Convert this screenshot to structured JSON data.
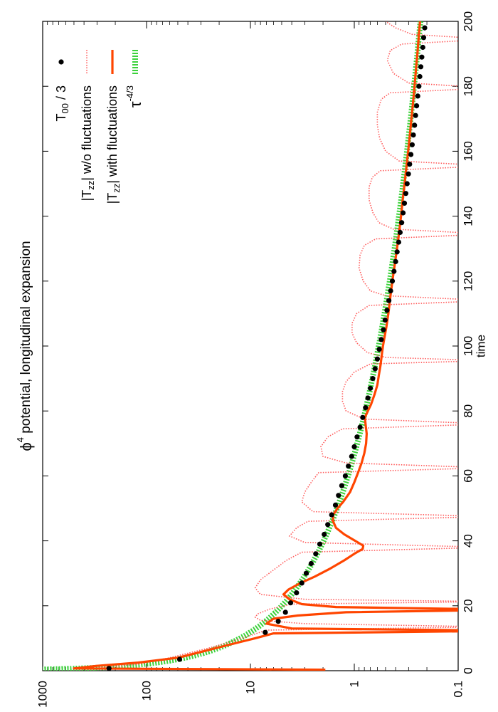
{
  "chart_data": {
    "type": "line",
    "title_symbol": "ϕ",
    "title_exponent": "4",
    "title_text": " potential, longitudinal expansion",
    "xlabel": "time",
    "ylabel": "",
    "xlim": [
      0,
      200
    ],
    "ylim": [
      0.1,
      1000
    ],
    "yscale": "log",
    "orientation": "rotated-90-ccw",
    "x_ticks": [
      "0",
      "20",
      "40",
      "60",
      "80",
      "100",
      "120",
      "140",
      "160",
      "180",
      "200"
    ],
    "y_ticks": [
      "0.1",
      "1",
      "10",
      "100",
      "1000"
    ],
    "grid": false,
    "legend_position": "top-right",
    "series": [
      {
        "name": "T00 / 3",
        "legend_main": "T",
        "legend_sub": "00",
        "legend_tail": " / 3",
        "style": "points",
        "color": "#000000",
        "points": [
          [
            0.7,
            230
          ],
          [
            3.5,
            48
          ],
          [
            11.8,
            7.2
          ],
          [
            15.2,
            5.4
          ],
          [
            18,
            4.6
          ],
          [
            20.9,
            4.1
          ],
          [
            24,
            3.6
          ],
          [
            27,
            3.2
          ],
          [
            30,
            2.9
          ],
          [
            33,
            2.6
          ],
          [
            36,
            2.35
          ],
          [
            39,
            2.15
          ],
          [
            42,
            1.95
          ],
          [
            45,
            1.8
          ],
          [
            48,
            1.65
          ],
          [
            51,
            1.52
          ],
          [
            54,
            1.42
          ],
          [
            57,
            1.32
          ],
          [
            60,
            1.22
          ],
          [
            63,
            1.14
          ],
          [
            66,
            1.06
          ],
          [
            69,
            1.0
          ],
          [
            72,
            0.94
          ],
          [
            75,
            0.88
          ],
          [
            78,
            0.83
          ],
          [
            81,
            0.78
          ],
          [
            84,
            0.74
          ],
          [
            87,
            0.7
          ],
          [
            90,
            0.665
          ],
          [
            93,
            0.63
          ],
          [
            96,
            0.6
          ],
          [
            99,
            0.575
          ],
          [
            102,
            0.55
          ],
          [
            105,
            0.525
          ],
          [
            108,
            0.505
          ],
          [
            111,
            0.485
          ],
          [
            114,
            0.465
          ],
          [
            117,
            0.447
          ],
          [
            120,
            0.43
          ],
          [
            123,
            0.415
          ],
          [
            126,
            0.4
          ],
          [
            129,
            0.387
          ],
          [
            132,
            0.374
          ],
          [
            135,
            0.362
          ],
          [
            138,
            0.35
          ],
          [
            141,
            0.339
          ],
          [
            144,
            0.329
          ],
          [
            147,
            0.319
          ],
          [
            150,
            0.31
          ],
          [
            153,
            0.301
          ],
          [
            156,
            0.293
          ],
          [
            159,
            0.285
          ],
          [
            162,
            0.277
          ],
          [
            165,
            0.27
          ],
          [
            168,
            0.263
          ],
          [
            171,
            0.257
          ],
          [
            174,
            0.251
          ],
          [
            177,
            0.245
          ],
          [
            180,
            0.239
          ],
          [
            183,
            0.234
          ],
          [
            186,
            0.229
          ],
          [
            189,
            0.224
          ],
          [
            192,
            0.219
          ],
          [
            195,
            0.215
          ],
          [
            198,
            0.21
          ]
        ]
      },
      {
        "name": "|Tzz| w/o fluctuations",
        "legend_main": "|T",
        "legend_sub": "zz",
        "legend_tail": "| w/o fluctuations",
        "style": "dotted",
        "color": "#ff5a5a",
        "points": [
          [
            0.5,
            380
          ],
          [
            2,
            120
          ],
          [
            4,
            60
          ],
          [
            7,
            25
          ],
          [
            10,
            12
          ],
          [
            12.5,
            7
          ],
          [
            13.5,
            0.05
          ],
          [
            14.5,
            3
          ],
          [
            15.5,
            8
          ],
          [
            16.5,
            9
          ],
          [
            17.5,
            8.5
          ],
          [
            19,
            6.5
          ],
          [
            20.5,
            4
          ],
          [
            21.3,
            0.05
          ],
          [
            22,
            3
          ],
          [
            23.5,
            8
          ],
          [
            25.5,
            9
          ],
          [
            28,
            8
          ],
          [
            31,
            6
          ],
          [
            34,
            4.5
          ],
          [
            36.5,
            3.2
          ],
          [
            38,
            0.05
          ],
          [
            39.5,
            3
          ],
          [
            41.5,
            4.2
          ],
          [
            44,
            3.6
          ],
          [
            46,
            2.8
          ],
          [
            47.5,
            0.05
          ],
          [
            49,
            2.5
          ],
          [
            52,
            3.2
          ],
          [
            55,
            3.0
          ],
          [
            58,
            2.6
          ],
          [
            61,
            2.2
          ],
          [
            62.5,
            0.05
          ],
          [
            64,
            1.2
          ],
          [
            66,
            2.0
          ],
          [
            69,
            2.1
          ],
          [
            72,
            1.8
          ],
          [
            74.5,
            1.3
          ],
          [
            76,
            0.05
          ],
          [
            77.5,
            0.8
          ],
          [
            80,
            1.2
          ],
          [
            83,
            1.3
          ],
          [
            86,
            1.3
          ],
          [
            89,
            1.2
          ],
          [
            92,
            1.0
          ],
          [
            94.5,
            0.7
          ],
          [
            95.5,
            0.05
          ],
          [
            96.5,
            0.5
          ],
          [
            98,
            0.75
          ],
          [
            101,
            0.95
          ],
          [
            104,
            1.05
          ],
          [
            107,
            1.05
          ],
          [
            110,
            0.95
          ],
          [
            112.5,
            0.72
          ],
          [
            114,
            0.05
          ],
          [
            115.5,
            0.5
          ],
          [
            117,
            0.7
          ],
          [
            120,
            0.82
          ],
          [
            124,
            0.9
          ],
          [
            128,
            0.88
          ],
          [
            131,
            0.8
          ],
          [
            133,
            0.62
          ],
          [
            134.5,
            0.05
          ],
          [
            136,
            0.42
          ],
          [
            138,
            0.58
          ],
          [
            141,
            0.66
          ],
          [
            145,
            0.72
          ],
          [
            149,
            0.72
          ],
          [
            152,
            0.67
          ],
          [
            154,
            0.56
          ],
          [
            155.5,
            0.05
          ],
          [
            157,
            0.37
          ],
          [
            160,
            0.5
          ],
          [
            164,
            0.57
          ],
          [
            168,
            0.6
          ],
          [
            172,
            0.6
          ],
          [
            176,
            0.55
          ],
          [
            178,
            0.45
          ],
          [
            179.5,
            0.05
          ],
          [
            181,
            0.3
          ],
          [
            184,
            0.42
          ],
          [
            188,
            0.48
          ],
          [
            191,
            0.45
          ],
          [
            193,
            0.35
          ],
          [
            194.5,
            0.05
          ],
          [
            196,
            0.28
          ],
          [
            198,
            0.4
          ],
          [
            200,
            0.5
          ]
        ]
      },
      {
        "name": "|Tzz| with fluctuations",
        "legend_main": "|T",
        "legend_sub": "zz",
        "legend_tail": "| with fluctuations",
        "style": "solid",
        "color": "#ff4500",
        "points": [
          [
            0.3,
            1.9
          ],
          [
            0.7,
            500
          ],
          [
            1.5,
            300
          ],
          [
            2.5,
            120
          ],
          [
            4,
            50
          ],
          [
            6,
            28
          ],
          [
            8,
            16
          ],
          [
            10,
            9
          ],
          [
            11.5,
            6
          ],
          [
            12.3,
            0.03
          ],
          [
            13,
            4
          ],
          [
            14.5,
            7
          ],
          [
            16,
            6
          ],
          [
            17,
            3.5
          ],
          [
            18,
            1.2
          ],
          [
            18.8,
            0.03
          ],
          [
            19.6,
            1.5
          ],
          [
            20.5,
            3.2
          ],
          [
            22,
            4.2
          ],
          [
            23.5,
            4.8
          ],
          [
            25,
            4.3
          ],
          [
            27,
            3.3
          ],
          [
            29,
            2.4
          ],
          [
            31.5,
            1.7
          ],
          [
            34,
            1.25
          ],
          [
            36,
            1.0
          ],
          [
            37.5,
            0.83
          ],
          [
            38.5,
            0.82
          ],
          [
            40,
            0.98
          ],
          [
            42,
            1.25
          ],
          [
            44,
            1.5
          ],
          [
            46,
            1.6
          ],
          [
            48,
            1.6
          ],
          [
            50,
            1.45
          ],
          [
            52,
            1.28
          ],
          [
            55,
            1.1
          ],
          [
            58,
            1.0
          ],
          [
            61,
            0.92
          ],
          [
            64,
            0.85
          ],
          [
            67,
            0.8
          ],
          [
            70,
            0.77
          ],
          [
            73,
            0.76
          ],
          [
            76,
            0.78
          ],
          [
            78,
            0.79
          ],
          [
            80,
            0.74
          ],
          [
            82,
            0.69
          ],
          [
            85,
            0.64
          ],
          [
            88,
            0.6
          ],
          [
            91,
            0.58
          ],
          [
            94,
            0.56
          ],
          [
            97,
            0.545
          ],
          [
            100,
            0.53
          ],
          [
            103,
            0.51
          ],
          [
            106,
            0.49
          ],
          [
            110,
            0.47
          ],
          [
            115,
            0.45
          ],
          [
            120,
            0.43
          ],
          [
            125,
            0.408
          ],
          [
            130,
            0.388
          ],
          [
            135,
            0.37
          ],
          [
            140,
            0.355
          ],
          [
            145,
            0.342
          ],
          [
            150,
            0.328
          ],
          [
            155,
            0.315
          ],
          [
            160,
            0.303
          ],
          [
            165,
            0.292
          ],
          [
            170,
            0.282
          ],
          [
            175,
            0.272
          ],
          [
            180,
            0.263
          ],
          [
            185,
            0.255
          ],
          [
            190,
            0.247
          ],
          [
            195,
            0.24
          ],
          [
            200,
            0.233
          ]
        ]
      },
      {
        "name": "τ^-4/3",
        "legend_main": "τ",
        "legend_sup": "-4/3",
        "style": "dashed-thick",
        "color": "#3cd23c",
        "formula": "y = 270 * x^(-4/3)",
        "x_range": [
          0.15,
          200
        ]
      }
    ]
  }
}
